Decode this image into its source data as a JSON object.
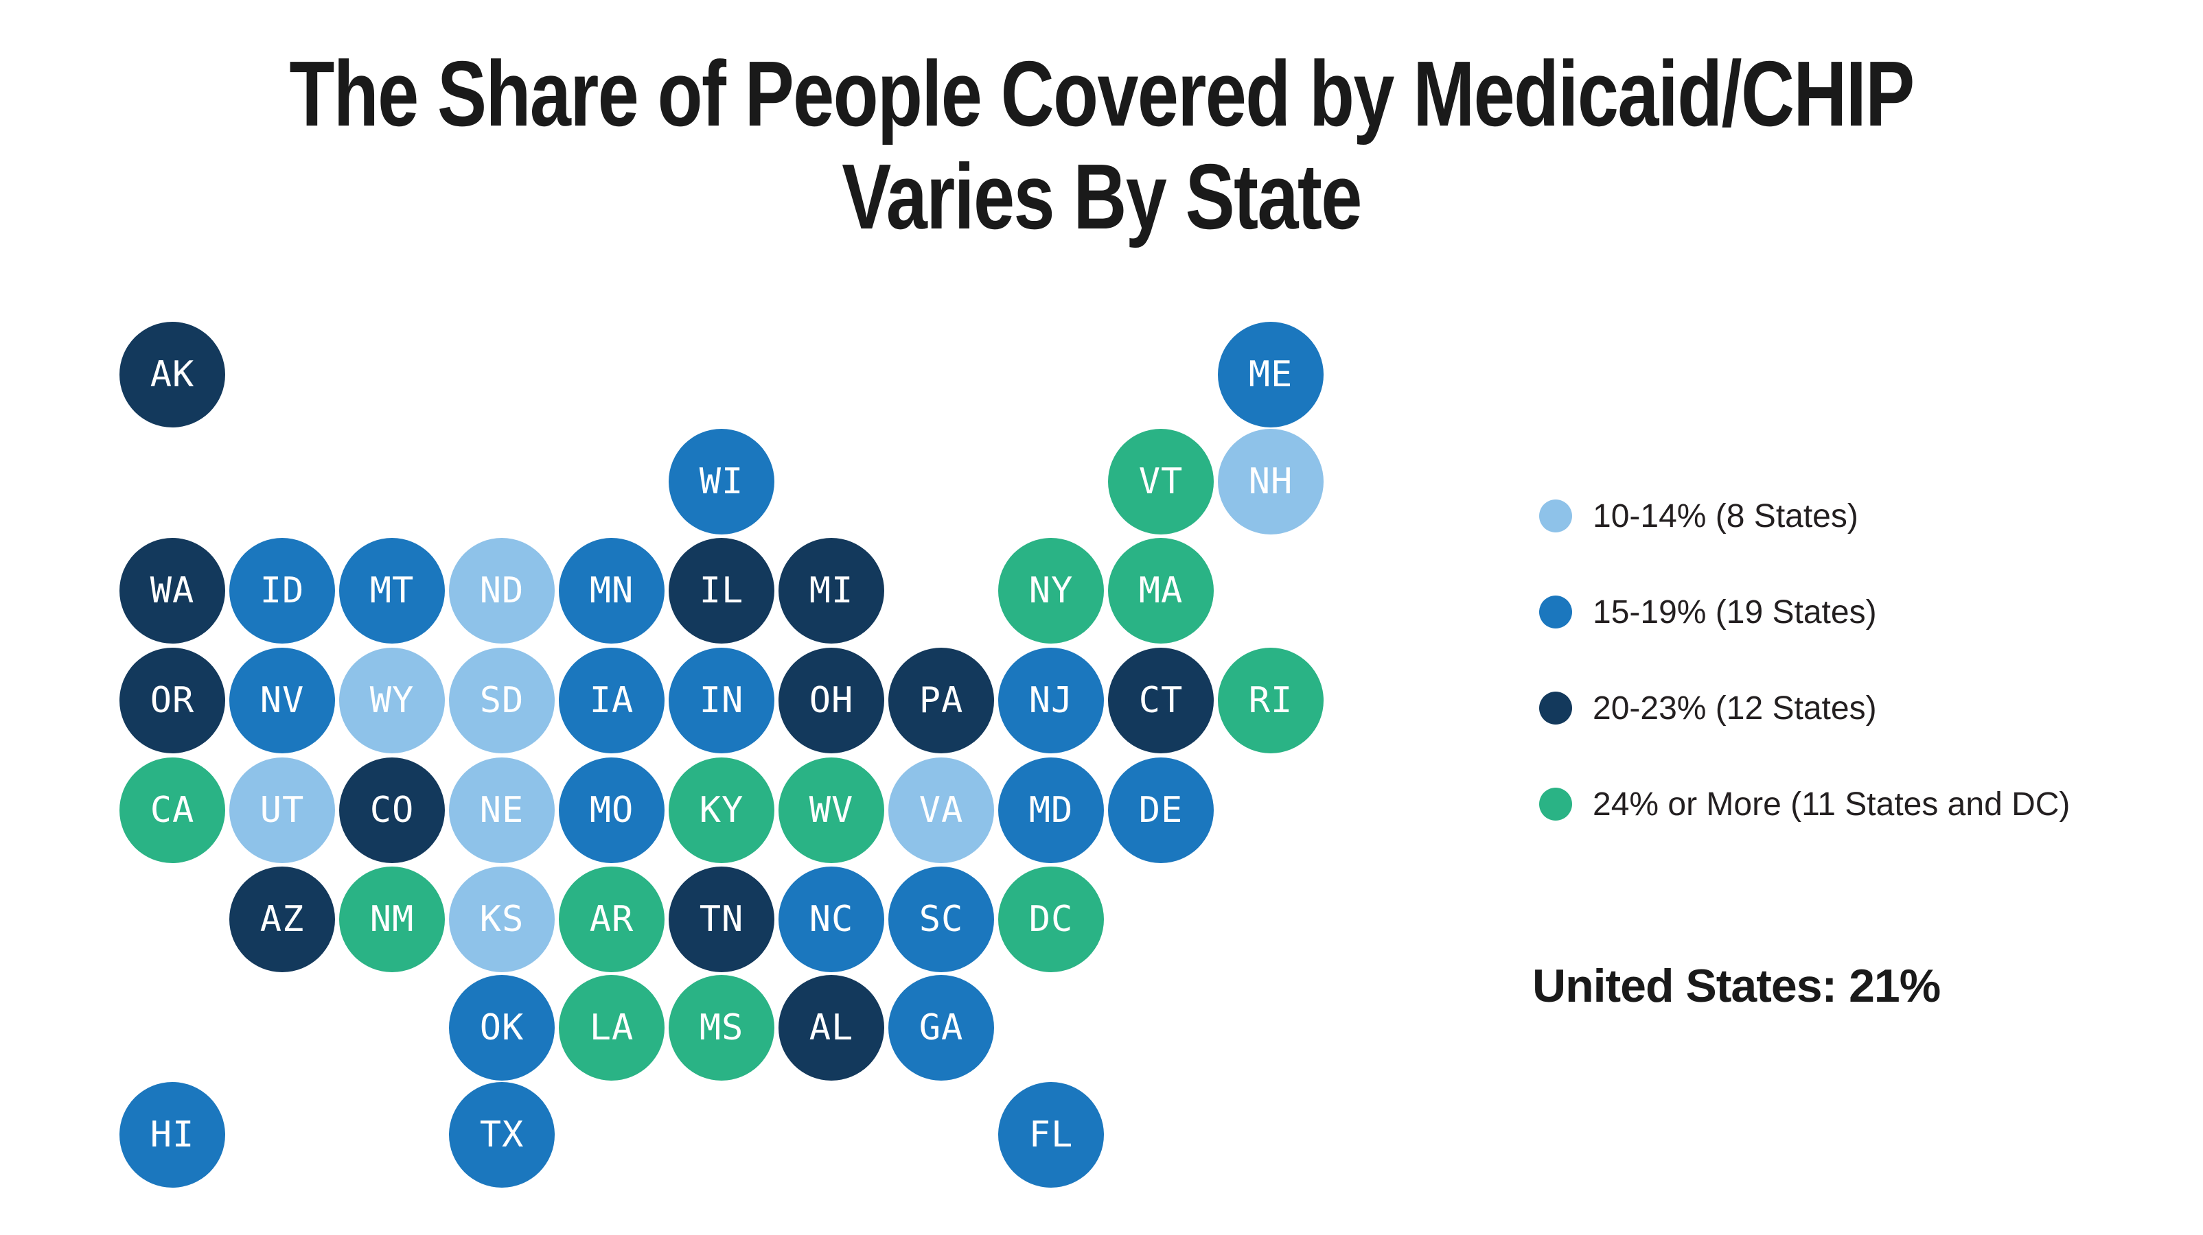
{
  "header": {
    "title_line1": "The Share of People Covered by Medicaid/CHIP",
    "title_line2": "Varies By State"
  },
  "summary": {
    "us_total_label": "United States: 21%"
  },
  "colors": {
    "background": "#FFFFFF",
    "text": "#1A1A1A",
    "tile_label": "#FFFFFF",
    "light_blue": "#8EC2E9",
    "blue": "#1B77BE",
    "navy": "#13395C",
    "green": "#2AB385"
  },
  "chart_data": {
    "type": "tile-grid-map",
    "title": "The Share of People Covered by Medicaid/CHIP Varies By State",
    "legend_position": "right",
    "us_total": "21%",
    "categories": [
      {
        "label": "10-14% (8 States)",
        "range": "10-14%",
        "states_count": 8,
        "color": "#8EC2E9"
      },
      {
        "label": "15-19% (19 States)",
        "range": "15-19%",
        "states_count": 19,
        "color": "#1B77BE"
      },
      {
        "label": "20-23% (12 States)",
        "range": "20-23%",
        "states_count": 12,
        "color": "#13395C"
      },
      {
        "label": "24% or More (11 States and DC)",
        "range": "24% or More",
        "states_count": 12,
        "color": "#2AB385"
      }
    ],
    "states": [
      {
        "abbr": "AK",
        "col": 1,
        "row": 1,
        "bin": 2
      },
      {
        "abbr": "ME",
        "col": 11,
        "row": 1,
        "bin": 1
      },
      {
        "abbr": "WI",
        "col": 6,
        "row": 2,
        "bin": 1
      },
      {
        "abbr": "VT",
        "col": 10,
        "row": 2,
        "bin": 3
      },
      {
        "abbr": "NH",
        "col": 11,
        "row": 2,
        "bin": 0
      },
      {
        "abbr": "WA",
        "col": 1,
        "row": 3,
        "bin": 2
      },
      {
        "abbr": "ID",
        "col": 2,
        "row": 3,
        "bin": 1
      },
      {
        "abbr": "MT",
        "col": 3,
        "row": 3,
        "bin": 1
      },
      {
        "abbr": "ND",
        "col": 4,
        "row": 3,
        "bin": 0
      },
      {
        "abbr": "MN",
        "col": 5,
        "row": 3,
        "bin": 1
      },
      {
        "abbr": "IL",
        "col": 6,
        "row": 3,
        "bin": 2
      },
      {
        "abbr": "MI",
        "col": 7,
        "row": 3,
        "bin": 2
      },
      {
        "abbr": "NY",
        "col": 9,
        "row": 3,
        "bin": 3
      },
      {
        "abbr": "MA",
        "col": 10,
        "row": 3,
        "bin": 3
      },
      {
        "abbr": "OR",
        "col": 1,
        "row": 4,
        "bin": 2
      },
      {
        "abbr": "NV",
        "col": 2,
        "row": 4,
        "bin": 1
      },
      {
        "abbr": "WY",
        "col": 3,
        "row": 4,
        "bin": 0
      },
      {
        "abbr": "SD",
        "col": 4,
        "row": 4,
        "bin": 0
      },
      {
        "abbr": "IA",
        "col": 5,
        "row": 4,
        "bin": 1
      },
      {
        "abbr": "IN",
        "col": 6,
        "row": 4,
        "bin": 1
      },
      {
        "abbr": "OH",
        "col": 7,
        "row": 4,
        "bin": 2
      },
      {
        "abbr": "PA",
        "col": 8,
        "row": 4,
        "bin": 2
      },
      {
        "abbr": "NJ",
        "col": 9,
        "row": 4,
        "bin": 1
      },
      {
        "abbr": "CT",
        "col": 10,
        "row": 4,
        "bin": 2
      },
      {
        "abbr": "RI",
        "col": 11,
        "row": 4,
        "bin": 3
      },
      {
        "abbr": "CA",
        "col": 1,
        "row": 5,
        "bin": 3
      },
      {
        "abbr": "UT",
        "col": 2,
        "row": 5,
        "bin": 0
      },
      {
        "abbr": "CO",
        "col": 3,
        "row": 5,
        "bin": 2
      },
      {
        "abbr": "NE",
        "col": 4,
        "row": 5,
        "bin": 0
      },
      {
        "abbr": "MO",
        "col": 5,
        "row": 5,
        "bin": 1
      },
      {
        "abbr": "KY",
        "col": 6,
        "row": 5,
        "bin": 3
      },
      {
        "abbr": "WV",
        "col": 7,
        "row": 5,
        "bin": 3
      },
      {
        "abbr": "VA",
        "col": 8,
        "row": 5,
        "bin": 0
      },
      {
        "abbr": "MD",
        "col": 9,
        "row": 5,
        "bin": 1
      },
      {
        "abbr": "DE",
        "col": 10,
        "row": 5,
        "bin": 1
      },
      {
        "abbr": "AZ",
        "col": 2,
        "row": 6,
        "bin": 2
      },
      {
        "abbr": "NM",
        "col": 3,
        "row": 6,
        "bin": 3
      },
      {
        "abbr": "KS",
        "col": 4,
        "row": 6,
        "bin": 0
      },
      {
        "abbr": "AR",
        "col": 5,
        "row": 6,
        "bin": 3
      },
      {
        "abbr": "TN",
        "col": 6,
        "row": 6,
        "bin": 2
      },
      {
        "abbr": "NC",
        "col": 7,
        "row": 6,
        "bin": 1
      },
      {
        "abbr": "SC",
        "col": 8,
        "row": 6,
        "bin": 1
      },
      {
        "abbr": "DC",
        "col": 9,
        "row": 6,
        "bin": 3
      },
      {
        "abbr": "OK",
        "col": 4,
        "row": 7,
        "bin": 1
      },
      {
        "abbr": "LA",
        "col": 5,
        "row": 7,
        "bin": 3
      },
      {
        "abbr": "MS",
        "col": 6,
        "row": 7,
        "bin": 3
      },
      {
        "abbr": "AL",
        "col": 7,
        "row": 7,
        "bin": 2
      },
      {
        "abbr": "GA",
        "col": 8,
        "row": 7,
        "bin": 1
      },
      {
        "abbr": "HI",
        "col": 1,
        "row": 8,
        "bin": 1
      },
      {
        "abbr": "TX",
        "col": 4,
        "row": 8,
        "bin": 1
      },
      {
        "abbr": "FL",
        "col": 9,
        "row": 8,
        "bin": 1
      }
    ]
  }
}
